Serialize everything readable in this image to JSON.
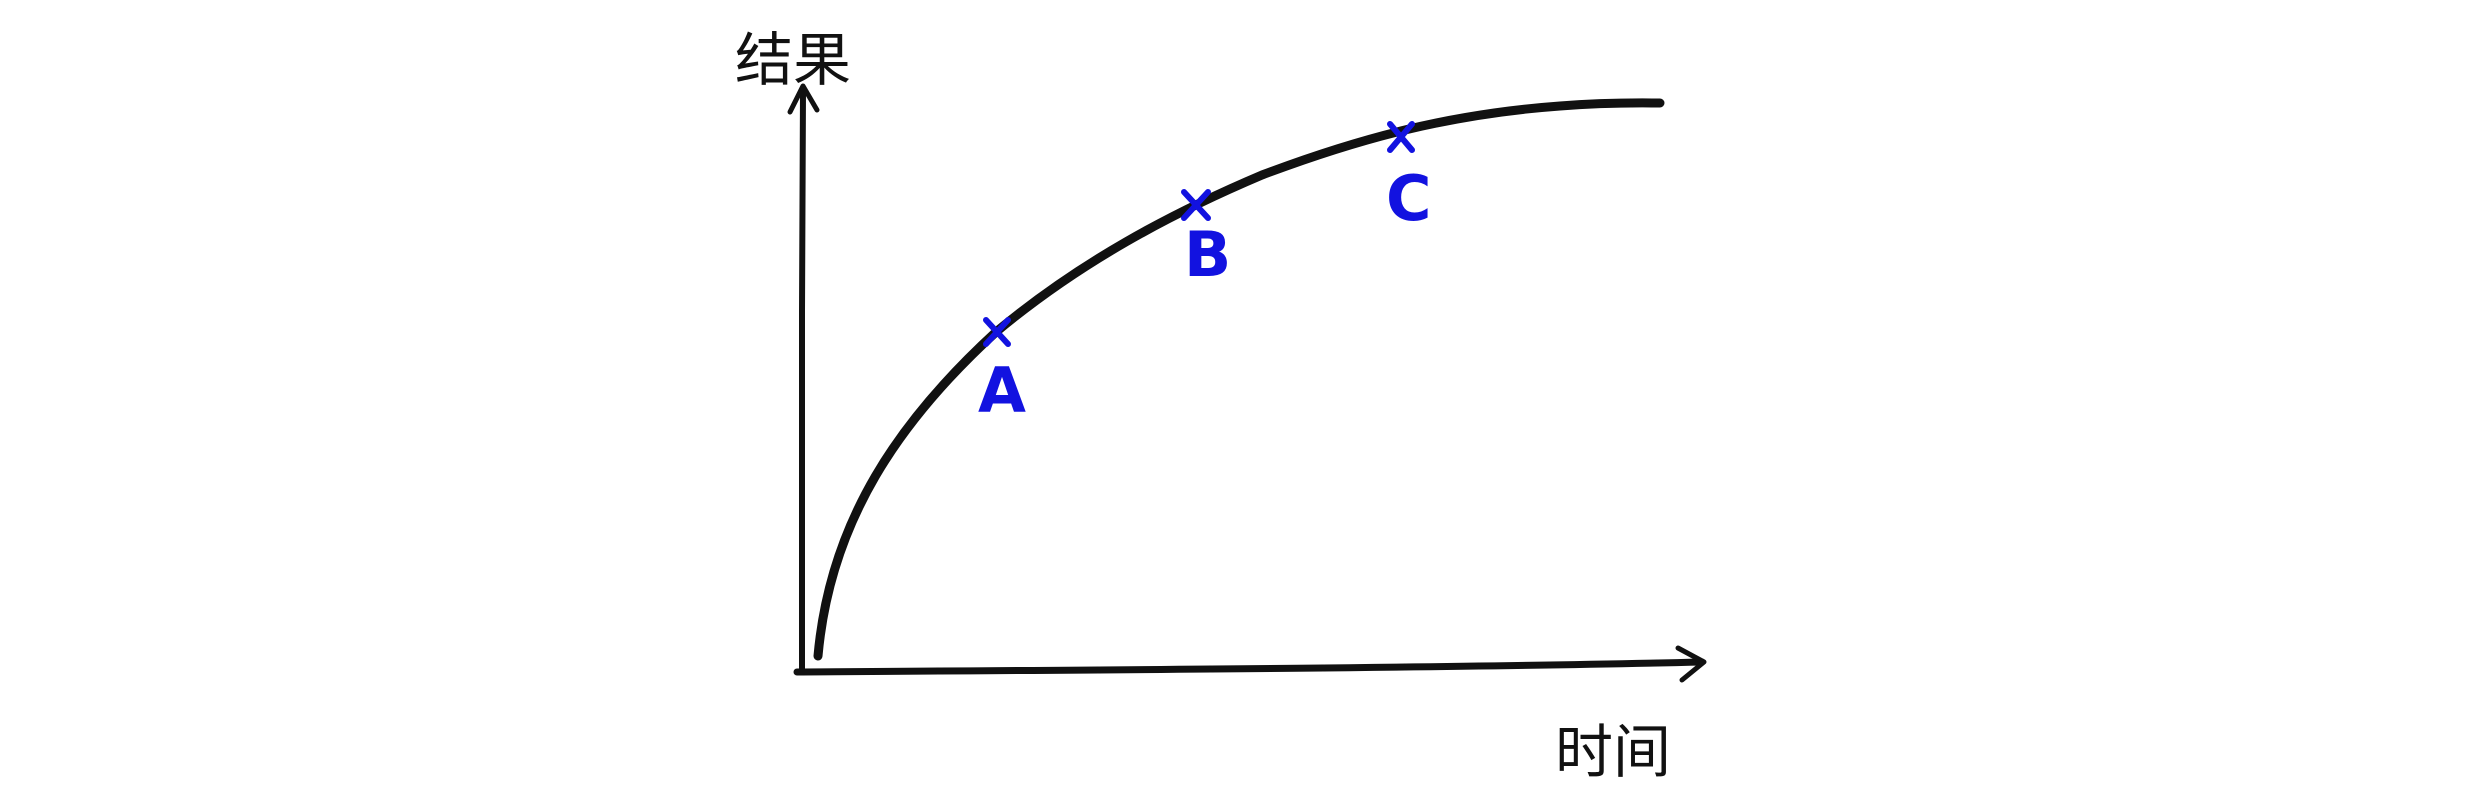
{
  "diagram": {
    "y_axis_title": "结果",
    "x_axis_title": "时间",
    "points": [
      {
        "label": "A"
      },
      {
        "label": "B"
      },
      {
        "label": "C"
      }
    ],
    "colors": {
      "ink": "#111111",
      "marker": "#1212e0"
    }
  }
}
